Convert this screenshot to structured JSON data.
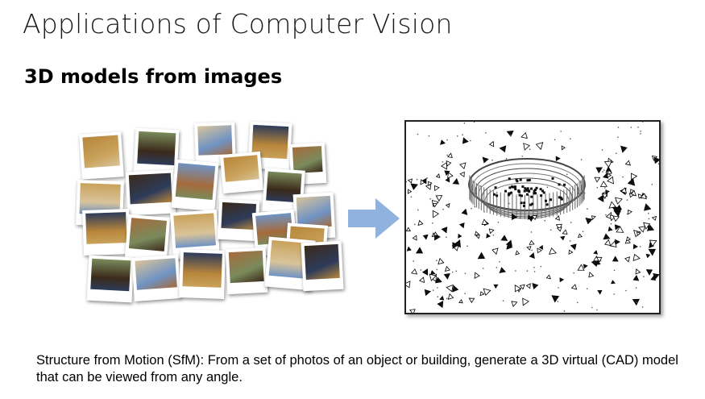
{
  "slide": {
    "title": "Applications of Computer Vision",
    "subtitle": "3D models from images",
    "caption": "Structure from Motion (SfM): From a set of photos of an object or building, generate a 3D virtual (CAD) model that can be viewed from any angle."
  },
  "figure": {
    "left_panel": "photo-collage",
    "middle": "right-arrow-icon",
    "right_panel": "point-cloud-reconstruction",
    "arrow_color": "#8fb3de",
    "photo_tones": [
      "#c9a25b",
      "#3b2a1a",
      "#6f93c4",
      "#b8863b",
      "#7a8a5c",
      "#d9c39a",
      "#2d3b5a",
      "#a56b3c"
    ]
  }
}
